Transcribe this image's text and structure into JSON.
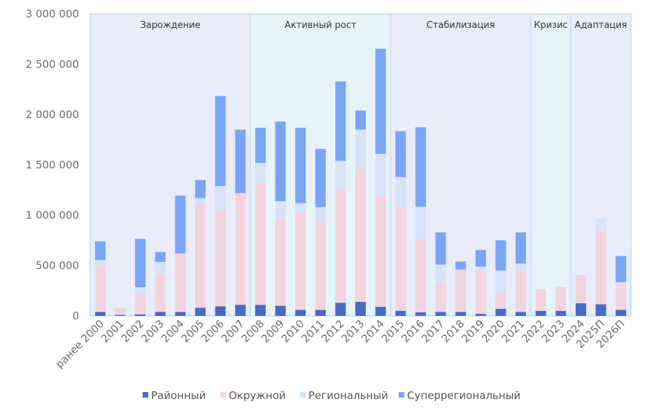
{
  "chart_data": {
    "type": "bar",
    "stacked": true,
    "title": "",
    "xlabel": "",
    "ylabel": "",
    "ylim": [
      0,
      3000000
    ],
    "yticks": [
      0,
      500000,
      1000000,
      1500000,
      2000000,
      2500000,
      3000000
    ],
    "ytick_labels": [
      "0",
      "500 000",
      "1 000 000",
      "1 500 000",
      "2 000 000",
      "2 500 000",
      "3 000 000"
    ],
    "categories": [
      "ранее 2000",
      "2001",
      "2002",
      "2003",
      "2004",
      "2005",
      "2006",
      "2007",
      "2008",
      "2009",
      "2010",
      "2011",
      "2012",
      "2013",
      "2014",
      "2015",
      "2016",
      "2017",
      "2018",
      "2019",
      "2020",
      "2021",
      "2022",
      "2023",
      "2024",
      "2025П",
      "2026П"
    ],
    "series": [
      {
        "name": "Районный",
        "color": "#4a69c4",
        "values": [
          40000,
          10000,
          15000,
          40000,
          40000,
          80000,
          95000,
          110000,
          110000,
          100000,
          60000,
          60000,
          130000,
          140000,
          90000,
          50000,
          35000,
          40000,
          40000,
          20000,
          70000,
          40000,
          50000,
          50000,
          125000,
          115000,
          60000
        ]
      },
      {
        "name": "Окружной",
        "color": "#f2d4de",
        "values": [
          465000,
          70000,
          205000,
          375000,
          580000,
          1030000,
          950000,
          1110000,
          1210000,
          870000,
          970000,
          870000,
          1120000,
          1330000,
          1100000,
          1020000,
          720000,
          290000,
          420000,
          420000,
          160000,
          410000,
          215000,
          235000,
          280000,
          725000,
          275000
        ]
      },
      {
        "name": "Региональный",
        "color": "#d6e3f8",
        "values": [
          50000,
          0,
          65000,
          120000,
          0,
          60000,
          245000,
          0,
          200000,
          170000,
          90000,
          150000,
          290000,
          380000,
          420000,
          310000,
          330000,
          180000,
          0,
          50000,
          220000,
          70000,
          0,
          0,
          0,
          130000,
          0
        ]
      },
      {
        "name": "Суперрегиональный",
        "color": "#7aa5f5",
        "values": [
          185000,
          0,
          480000,
          100000,
          575000,
          180000,
          895000,
          630000,
          350000,
          790000,
          750000,
          580000,
          790000,
          190000,
          1045000,
          455000,
          790000,
          320000,
          80000,
          165000,
          300000,
          310000,
          0,
          0,
          0,
          0,
          260000
        ]
      }
    ],
    "phases": [
      {
        "label": "Зарождение",
        "first": 0,
        "last": 7,
        "color": "#e8ecfb"
      },
      {
        "label": "Активный рост",
        "first": 8,
        "last": 14,
        "color": "#e6f4fa"
      },
      {
        "label": "Стабилизация",
        "first": 15,
        "last": 21,
        "color": "#e8ecfb"
      },
      {
        "label": "Кризис",
        "first": 22,
        "last": 23,
        "color": "#e6f4fa"
      },
      {
        "label": "Адаптация",
        "first": 24,
        "last": 26,
        "color": "#e8ecfb"
      }
    ],
    "legend_position": "bottom-center",
    "grid": false
  }
}
